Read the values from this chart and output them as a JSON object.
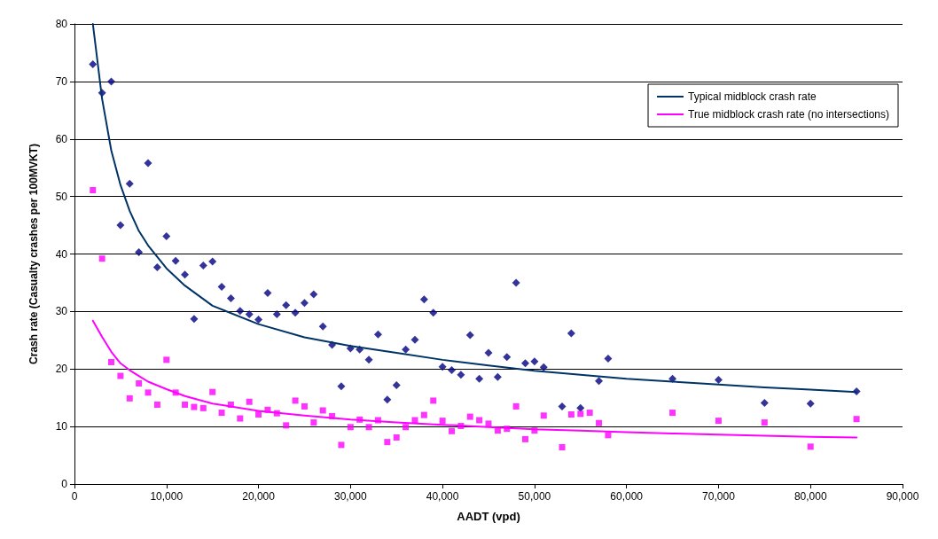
{
  "chart_data": {
    "type": "scatter",
    "xlabel": "AADT (vpd)",
    "ylabel": "Crash rate (Casualty crashes per 100MVKT)",
    "xlim": [
      0,
      90000
    ],
    "xticks": [
      0,
      {
        "value": 10000,
        "label": "10,000"
      },
      {
        "value": 20000,
        "label": "20,000"
      },
      {
        "value": 30000,
        "label": "30,000"
      },
      {
        "value": 40000,
        "label": "40,000"
      },
      {
        "value": 50000,
        "label": "50,000"
      },
      {
        "value": 60000,
        "label": "60,000"
      },
      {
        "value": 70000,
        "label": "70,000"
      },
      {
        "value": 80000,
        "label": "80,000"
      },
      {
        "value": 90000,
        "label": "90,000"
      }
    ],
    "ylim": [
      0,
      80
    ],
    "yticks": [
      0,
      10,
      20,
      30,
      40,
      50,
      60,
      70,
      80
    ],
    "grid": "y",
    "legend": "top right",
    "series": [
      {
        "type": "scatter",
        "marker": "diamond",
        "color": "#000080",
        "x": [
          2000,
          3000,
          4000,
          5000,
          6000,
          7000,
          8000,
          9000,
          10000,
          11000,
          12000,
          13000,
          14000,
          15000,
          16000,
          17000,
          18000,
          19000,
          20000,
          21000,
          22000,
          23000,
          24000,
          25000,
          26000,
          27000,
          28000,
          29000,
          30000,
          31000,
          32000,
          33000,
          34000,
          35000,
          36000,
          37000,
          38000,
          39000,
          40000,
          41000,
          42000,
          43000,
          44000,
          45000,
          46000,
          47000,
          48000,
          49000,
          50000,
          51000,
          53000,
          54000,
          55000,
          57000,
          58000,
          65000,
          70000,
          75000,
          80000,
          85000
        ],
        "values": [
          73,
          68,
          70,
          45,
          52.2,
          40.3,
          55.8,
          37.7,
          43.1,
          38.8,
          36.4,
          28.7,
          38,
          38.7,
          34.3,
          32.3,
          30.1,
          29.5,
          28.6,
          33.2,
          29.5,
          31.1,
          29.8,
          31.5,
          33,
          27.4,
          24.2,
          17,
          23.6,
          23.4,
          21.6,
          26,
          14.7,
          17.2,
          23.4,
          25.1,
          32.1,
          29.8,
          20.4,
          19.8,
          19,
          25.9,
          18.3,
          22.8,
          18.6,
          22.1,
          35,
          21,
          21.3,
          20.3,
          13.5,
          26.2,
          13.2,
          17.9,
          21.8,
          18.3,
          18.1,
          14.1,
          14,
          16.1
        ]
      },
      {
        "type": "scatter",
        "marker": "square",
        "color": "#ff00ff",
        "x": [
          2000,
          3000,
          4000,
          5000,
          6000,
          7000,
          8000,
          9000,
          10000,
          11000,
          12000,
          13000,
          14000,
          15000,
          16000,
          17000,
          18000,
          19000,
          20000,
          21000,
          22000,
          23000,
          24000,
          25000,
          26000,
          27000,
          28000,
          29000,
          30000,
          31000,
          32000,
          33000,
          34000,
          35000,
          36000,
          37000,
          38000,
          39000,
          40000,
          41000,
          42000,
          43000,
          44000,
          45000,
          46000,
          47000,
          48000,
          49000,
          50000,
          51000,
          53000,
          54000,
          55000,
          56000,
          57000,
          58000,
          65000,
          70000,
          75000,
          80000,
          85000
        ],
        "values": [
          51.1,
          39.2,
          21.2,
          18.8,
          14.9,
          17.5,
          15.9,
          13.8,
          21.6,
          15.9,
          13.8,
          13.4,
          13.2,
          16,
          12.4,
          13.8,
          11.4,
          14.3,
          12.1,
          12.9,
          12.3,
          10.2,
          14.5,
          13.5,
          10.7,
          12.8,
          11.8,
          6.8,
          9.9,
          11.2,
          9.9,
          11.1,
          7.3,
          8.1,
          9.9,
          11.1,
          12,
          14.5,
          11,
          9.2,
          10.1,
          11.7,
          11.1,
          10.5,
          9.3,
          9.6,
          13.5,
          7.8,
          9.3,
          11.9,
          6.4,
          12.1,
          12.2,
          12.4,
          10.6,
          8.5,
          12.4,
          11,
          10.7,
          6.5,
          11.3
        ]
      },
      {
        "type": "line",
        "name": "Typical midblock crash rate",
        "color": "#003366",
        "marker": "none",
        "line_style": "solid",
        "x": [
          2000,
          3000,
          4000,
          5000,
          6000,
          7000,
          8000,
          10000,
          12000,
          15000,
          20000,
          25000,
          30000,
          35000,
          40000,
          45000,
          50000,
          55000,
          60000,
          65000,
          70000,
          75000,
          80000,
          85000
        ],
        "values": [
          80,
          67,
          58,
          52,
          47.5,
          44,
          41.5,
          37.5,
          34.5,
          31,
          27.8,
          25.5,
          24,
          22.8,
          21.6,
          20.6,
          19.7,
          19,
          18.3,
          17.8,
          17.3,
          16.8,
          16.4,
          16
        ]
      },
      {
        "type": "line",
        "name": "True midblock crash rate (no intersections)",
        "color": "#ff00ff",
        "marker": "none",
        "line_style": "solid",
        "x": [
          2000,
          3000,
          4000,
          5000,
          6000,
          7000,
          8000,
          10000,
          12000,
          15000,
          20000,
          25000,
          30000,
          35000,
          40000,
          45000,
          50000,
          55000,
          60000,
          65000,
          70000,
          75000,
          80000,
          85000
        ],
        "values": [
          28.4,
          25.6,
          23,
          21,
          19.8,
          18.8,
          17.8,
          16.5,
          15.3,
          14,
          12.7,
          11.9,
          11.2,
          10.7,
          10.3,
          9.9,
          9.5,
          9.3,
          9,
          8.8,
          8.6,
          8.4,
          8.2,
          8.1
        ]
      }
    ]
  }
}
